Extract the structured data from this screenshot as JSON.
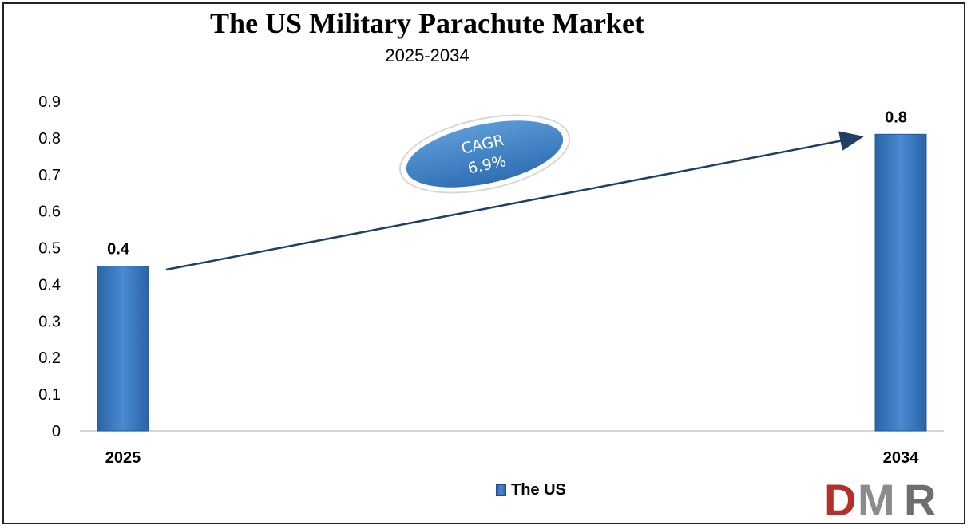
{
  "chart_data": {
    "type": "bar",
    "title": "The US Military Parachute Market",
    "subtitle": "2025-2034",
    "categories": [
      "2025",
      "2034"
    ],
    "series": [
      {
        "name": "The US",
        "values": [
          0.45,
          0.81
        ],
        "labels": [
          "0.4",
          "0.8"
        ],
        "color": "#3a78bd"
      }
    ],
    "ylim": [
      0,
      0.9
    ],
    "yticks": [
      "0",
      "0.1",
      "0.2",
      "0.3",
      "0.4",
      "0.5",
      "0.6",
      "0.7",
      "0.8",
      "0.9"
    ],
    "grid": false,
    "legend": "bottom",
    "annotation": {
      "line1": "CAGR",
      "line2": "6.9%"
    }
  },
  "logo": {
    "text_d": "D",
    "text_m": "M",
    "text_r": "R"
  }
}
